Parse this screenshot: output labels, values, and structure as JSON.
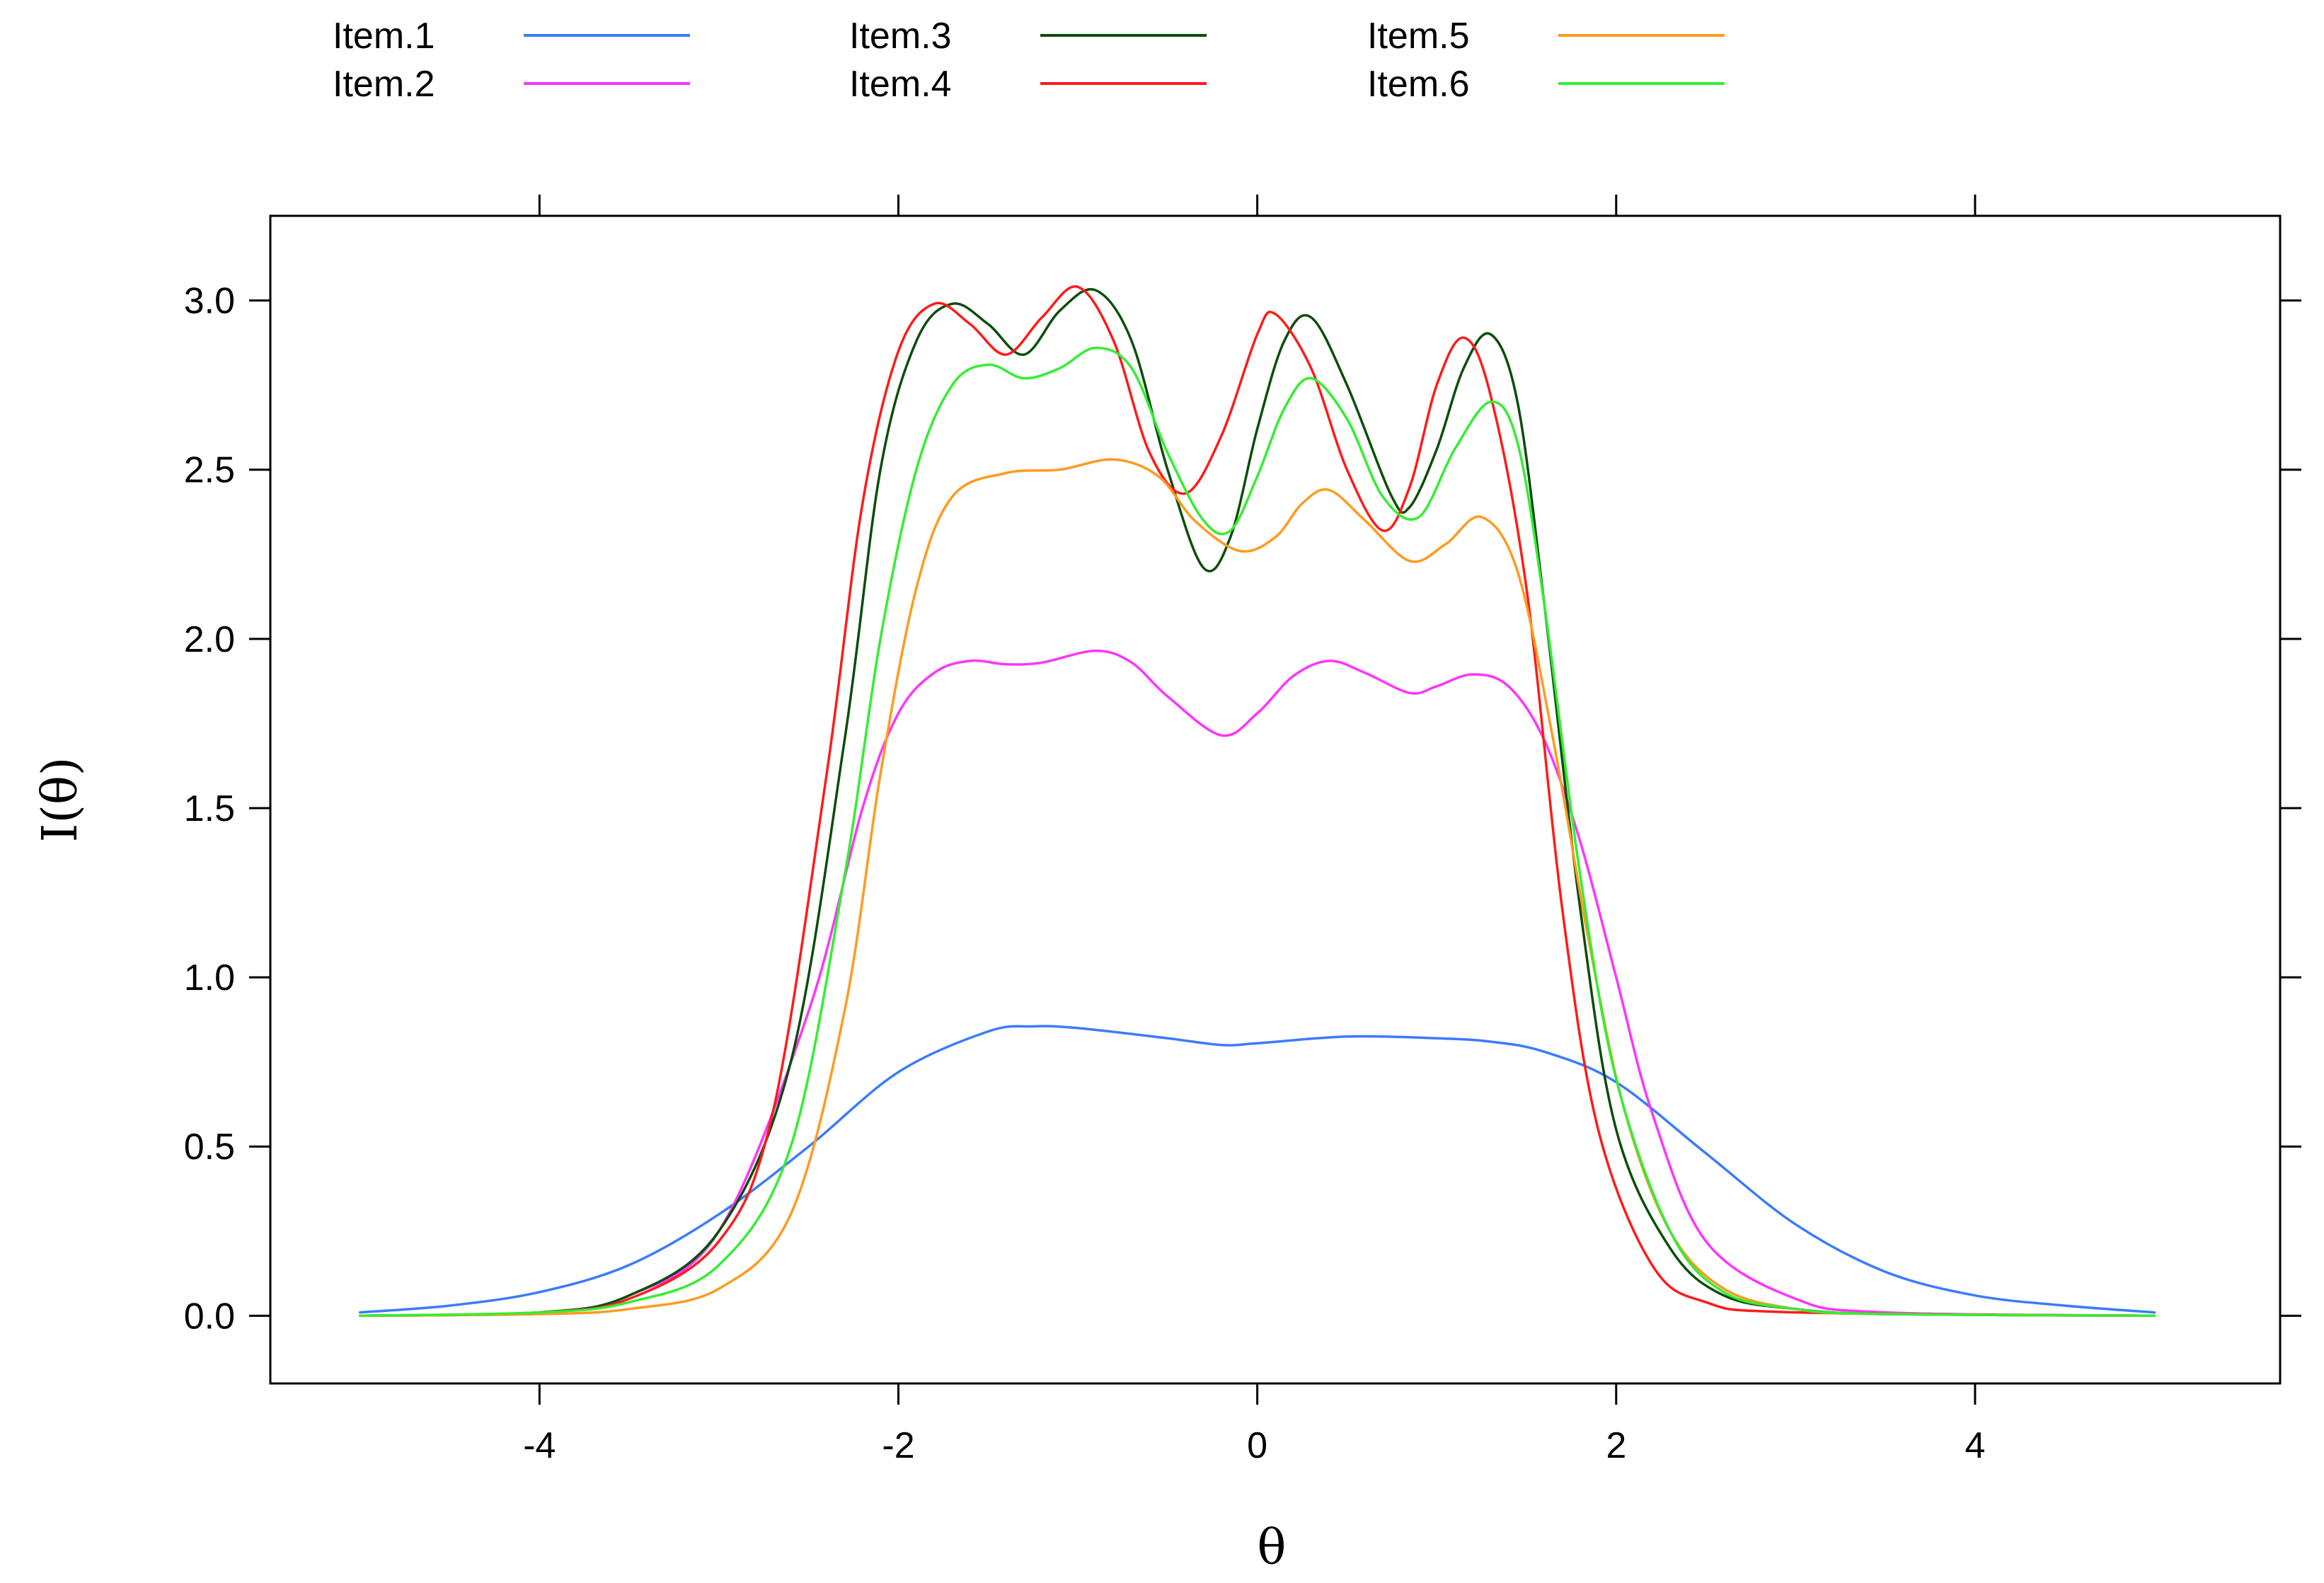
{
  "chart_data": {
    "type": "line",
    "title": "",
    "xlabel": "θ",
    "ylabel": "I(θ)",
    "xlim": [
      -5.5,
      5.7
    ],
    "ylim": [
      -0.2,
      3.25
    ],
    "x_ticks": [
      -4,
      -2,
      0,
      2,
      4
    ],
    "x_tick_labels": [
      "-4",
      "-2",
      "0",
      "2",
      "4"
    ],
    "y_ticks": [
      0.0,
      0.5,
      1.0,
      1.5,
      2.0,
      2.5,
      3.0
    ],
    "y_tick_labels": [
      "0.0",
      "0.5",
      "1.0",
      "1.5",
      "2.0",
      "2.5",
      "3.0"
    ],
    "grid": false,
    "legend_position": "top",
    "series": [
      {
        "name": "Item.1",
        "color": "#3a7bff",
        "points": [
          [
            -5,
            0.01
          ],
          [
            -4.5,
            0.03
          ],
          [
            -4,
            0.07
          ],
          [
            -3.5,
            0.15
          ],
          [
            -3,
            0.3
          ],
          [
            -2.5,
            0.5
          ],
          [
            -2,
            0.72
          ],
          [
            -1.5,
            0.84
          ],
          [
            -1.25,
            0.855
          ],
          [
            -1,
            0.85
          ],
          [
            -0.5,
            0.82
          ],
          [
            -0.2,
            0.8
          ],
          [
            0,
            0.805
          ],
          [
            0.5,
            0.825
          ],
          [
            1,
            0.82
          ],
          [
            1.3,
            0.81
          ],
          [
            1.6,
            0.78
          ],
          [
            2,
            0.69
          ],
          [
            2.5,
            0.48
          ],
          [
            3,
            0.27
          ],
          [
            3.5,
            0.13
          ],
          [
            4,
            0.06
          ],
          [
            4.5,
            0.03
          ],
          [
            5,
            0.01
          ]
        ]
      },
      {
        "name": "Item.2",
        "color": "#ff33ff",
        "points": [
          [
            -5,
            0.0
          ],
          [
            -4,
            0.01
          ],
          [
            -3.5,
            0.06
          ],
          [
            -3,
            0.25
          ],
          [
            -2.5,
            0.9
          ],
          [
            -2.2,
            1.5
          ],
          [
            -2,
            1.78
          ],
          [
            -1.8,
            1.9
          ],
          [
            -1.6,
            1.935
          ],
          [
            -1.4,
            1.925
          ],
          [
            -1.2,
            1.93
          ],
          [
            -0.9,
            1.965
          ],
          [
            -0.7,
            1.93
          ],
          [
            -0.5,
            1.83
          ],
          [
            -0.2,
            1.715
          ],
          [
            0,
            1.78
          ],
          [
            0.2,
            1.89
          ],
          [
            0.4,
            1.935
          ],
          [
            0.6,
            1.9
          ],
          [
            0.85,
            1.84
          ],
          [
            1,
            1.86
          ],
          [
            1.2,
            1.895
          ],
          [
            1.4,
            1.86
          ],
          [
            1.6,
            1.7
          ],
          [
            1.8,
            1.4
          ],
          [
            2,
            1.0
          ],
          [
            2.2,
            0.6
          ],
          [
            2.5,
            0.22
          ],
          [
            3,
            0.05
          ],
          [
            3.5,
            0.01
          ],
          [
            5,
            0.0
          ]
        ]
      },
      {
        "name": "Item.3",
        "color": "#0b4d0b",
        "points": [
          [
            -5,
            0.0
          ],
          [
            -4,
            0.01
          ],
          [
            -3.5,
            0.06
          ],
          [
            -3,
            0.25
          ],
          [
            -2.6,
            0.75
          ],
          [
            -2.3,
            1.7
          ],
          [
            -2.1,
            2.5
          ],
          [
            -1.9,
            2.88
          ],
          [
            -1.7,
            2.99
          ],
          [
            -1.5,
            2.93
          ],
          [
            -1.3,
            2.84
          ],
          [
            -1.1,
            2.97
          ],
          [
            -0.9,
            3.03
          ],
          [
            -0.7,
            2.88
          ],
          [
            -0.5,
            2.5
          ],
          [
            -0.3,
            2.21
          ],
          [
            -0.15,
            2.3
          ],
          [
            0,
            2.62
          ],
          [
            0.15,
            2.88
          ],
          [
            0.3,
            2.95
          ],
          [
            0.5,
            2.75
          ],
          [
            0.75,
            2.42
          ],
          [
            0.85,
            2.39
          ],
          [
            1,
            2.56
          ],
          [
            1.15,
            2.8
          ],
          [
            1.3,
            2.9
          ],
          [
            1.45,
            2.7
          ],
          [
            1.6,
            2.1
          ],
          [
            1.8,
            1.2
          ],
          [
            2,
            0.55
          ],
          [
            2.3,
            0.2
          ],
          [
            2.6,
            0.06
          ],
          [
            3,
            0.02
          ],
          [
            3.5,
            0.005
          ],
          [
            5,
            0.0
          ]
        ]
      },
      {
        "name": "Item.4",
        "color": "#ff1a1a",
        "points": [
          [
            -5,
            0.0
          ],
          [
            -4,
            0.01
          ],
          [
            -3.5,
            0.05
          ],
          [
            -3,
            0.22
          ],
          [
            -2.7,
            0.6
          ],
          [
            -2.4,
            1.6
          ],
          [
            -2.2,
            2.4
          ],
          [
            -2.0,
            2.85
          ],
          [
            -1.8,
            2.99
          ],
          [
            -1.6,
            2.93
          ],
          [
            -1.4,
            2.84
          ],
          [
            -1.2,
            2.95
          ],
          [
            -1.0,
            3.04
          ],
          [
            -0.8,
            2.88
          ],
          [
            -0.6,
            2.55
          ],
          [
            -0.4,
            2.43
          ],
          [
            -0.2,
            2.6
          ],
          [
            0,
            2.9
          ],
          [
            0.1,
            2.96
          ],
          [
            0.3,
            2.8
          ],
          [
            0.5,
            2.5
          ],
          [
            0.7,
            2.32
          ],
          [
            0.85,
            2.45
          ],
          [
            1,
            2.75
          ],
          [
            1.15,
            2.89
          ],
          [
            1.3,
            2.72
          ],
          [
            1.5,
            2.15
          ],
          [
            1.7,
            1.2
          ],
          [
            1.9,
            0.55
          ],
          [
            2.2,
            0.15
          ],
          [
            2.5,
            0.04
          ],
          [
            3,
            0.01
          ],
          [
            5,
            0.0
          ]
        ]
      },
      {
        "name": "Item.5",
        "color": "#ff9a1f",
        "points": [
          [
            -5,
            0.0
          ],
          [
            -4,
            0.005
          ],
          [
            -3.5,
            0.02
          ],
          [
            -3,
            0.08
          ],
          [
            -2.6,
            0.3
          ],
          [
            -2.3,
            0.9
          ],
          [
            -2.1,
            1.6
          ],
          [
            -1.9,
            2.15
          ],
          [
            -1.7,
            2.42
          ],
          [
            -1.4,
            2.49
          ],
          [
            -1.1,
            2.5
          ],
          [
            -0.8,
            2.53
          ],
          [
            -0.55,
            2.48
          ],
          [
            -0.35,
            2.35
          ],
          [
            -0.1,
            2.26
          ],
          [
            0.1,
            2.3
          ],
          [
            0.25,
            2.4
          ],
          [
            0.4,
            2.44
          ],
          [
            0.6,
            2.35
          ],
          [
            0.85,
            2.23
          ],
          [
            1.05,
            2.28
          ],
          [
            1.25,
            2.36
          ],
          [
            1.45,
            2.2
          ],
          [
            1.65,
            1.7
          ],
          [
            1.85,
            1.1
          ],
          [
            2.05,
            0.6
          ],
          [
            2.3,
            0.25
          ],
          [
            2.6,
            0.08
          ],
          [
            3,
            0.02
          ],
          [
            3.5,
            0.005
          ],
          [
            5,
            0.0
          ]
        ]
      },
      {
        "name": "Item.6",
        "color": "#33ee33",
        "points": [
          [
            -5,
            0.0
          ],
          [
            -4,
            0.01
          ],
          [
            -3.5,
            0.04
          ],
          [
            -3,
            0.15
          ],
          [
            -2.6,
            0.5
          ],
          [
            -2.3,
            1.3
          ],
          [
            -2.1,
            2.0
          ],
          [
            -1.9,
            2.5
          ],
          [
            -1.7,
            2.75
          ],
          [
            -1.5,
            2.81
          ],
          [
            -1.3,
            2.77
          ],
          [
            -1.1,
            2.8
          ],
          [
            -0.9,
            2.86
          ],
          [
            -0.7,
            2.8
          ],
          [
            -0.5,
            2.55
          ],
          [
            -0.3,
            2.35
          ],
          [
            -0.15,
            2.32
          ],
          [
            0,
            2.48
          ],
          [
            0.15,
            2.68
          ],
          [
            0.3,
            2.77
          ],
          [
            0.5,
            2.65
          ],
          [
            0.7,
            2.42
          ],
          [
            0.9,
            2.36
          ],
          [
            1.1,
            2.56
          ],
          [
            1.3,
            2.7
          ],
          [
            1.45,
            2.58
          ],
          [
            1.6,
            2.1
          ],
          [
            1.8,
            1.3
          ],
          [
            2,
            0.7
          ],
          [
            2.3,
            0.25
          ],
          [
            2.6,
            0.07
          ],
          [
            3,
            0.02
          ],
          [
            3.5,
            0.005
          ],
          [
            5,
            0.0
          ]
        ]
      }
    ]
  }
}
